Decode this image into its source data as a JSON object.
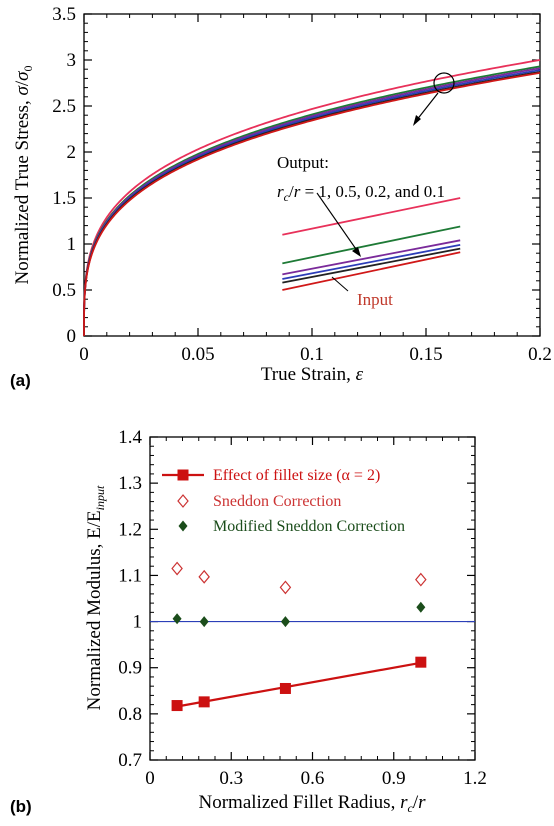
{
  "chart_data": [
    {
      "panel_label": "(a)",
      "type": "line",
      "xlabel": "True Strain, ε",
      "ylabel": "Normalized True Stress, σ/σ0",
      "xlim": [
        0,
        0.2
      ],
      "ylim": [
        0,
        3.5
      ],
      "xticks": [
        "0",
        "0.05",
        "0.1",
        "0.15",
        "0.2"
      ],
      "yticks": [
        "0",
        "0.5",
        "1",
        "1.5",
        "2",
        "2.5",
        "3",
        "3.5"
      ],
      "grid": false,
      "annotations": {
        "output_title": "Output:",
        "output_detail": "r_c/r = 1, 0.5, 0.2, and 0.1",
        "input_label": "Input"
      },
      "series": [
        {
          "color": "#e8315a",
          "x": [
            0,
            0.005,
            0.01,
            0.02,
            0.05,
            0.1,
            0.15,
            0.2
          ],
          "y": [
            0,
            1.06,
            1.3,
            1.59,
            2.03,
            2.48,
            2.77,
            3.0
          ]
        },
        {
          "color": "#1e7a36",
          "x": [
            0,
            0.005,
            0.01,
            0.02,
            0.05,
            0.1,
            0.15,
            0.2
          ],
          "y": [
            0,
            1.03,
            1.27,
            1.56,
            1.99,
            2.44,
            2.72,
            2.93
          ]
        },
        {
          "color": "#7a2a9a",
          "x": [
            0,
            0.005,
            0.01,
            0.02,
            0.05,
            0.1,
            0.15,
            0.2
          ],
          "y": [
            0,
            1.02,
            1.26,
            1.55,
            1.98,
            2.42,
            2.7,
            2.91
          ]
        },
        {
          "color": "#2c3db8",
          "x": [
            0,
            0.005,
            0.01,
            0.02,
            0.05,
            0.1,
            0.15,
            0.2
          ],
          "y": [
            0,
            1.01,
            1.25,
            1.54,
            1.97,
            2.41,
            2.68,
            2.89
          ]
        },
        {
          "color": "#222222",
          "x": [
            0,
            0.005,
            0.01,
            0.02,
            0.05,
            0.1,
            0.15,
            0.2
          ],
          "y": [
            0,
            1.0,
            1.24,
            1.53,
            1.96,
            2.4,
            2.67,
            2.87
          ]
        },
        {
          "color": "#d01818",
          "x": [
            0,
            0.005,
            0.01,
            0.02,
            0.05,
            0.1,
            0.15,
            0.2
          ],
          "y": [
            0,
            0.99,
            1.23,
            1.52,
            1.95,
            2.39,
            2.66,
            2.86
          ]
        }
      ]
    },
    {
      "panel_label": "(b)",
      "type": "scatter",
      "xlabel": "Normalized Fillet Radius, r_c/r",
      "ylabel": "Normalized Modulus, E/E_input",
      "xlim": [
        0,
        1.2
      ],
      "ylim": [
        0.7,
        1.4
      ],
      "xticks": [
        "0",
        "0.3",
        "0.6",
        "0.9",
        "1.2"
      ],
      "yticks": [
        "0.7",
        "0.8",
        "0.9",
        "1",
        "1.1",
        "1.2",
        "1.3",
        "1.4"
      ],
      "grid": false,
      "reference_line": 1.0,
      "legend_position": "top-right",
      "series": [
        {
          "name": "Effect of fillet size (α = 2)",
          "marker": "filled-square",
          "line": true,
          "color": "#cc1111",
          "x": [
            0.1,
            0.2,
            0.5,
            1.0
          ],
          "y": [
            0.818,
            0.826,
            0.855,
            0.912
          ]
        },
        {
          "name": "Sneddon Correction",
          "marker": "open-diamond",
          "line": false,
          "color": "#cc3333",
          "x": [
            0.1,
            0.2,
            0.5,
            1.0
          ],
          "y": [
            1.115,
            1.097,
            1.074,
            1.091
          ]
        },
        {
          "name": "Modified Sneddon Correction",
          "marker": "filled-diamond",
          "line": false,
          "color": "#1b4d1b",
          "x": [
            0.1,
            0.2,
            0.5,
            1.0
          ],
          "y": [
            1.006,
            1.0,
            1.0,
            1.031
          ]
        }
      ]
    }
  ]
}
